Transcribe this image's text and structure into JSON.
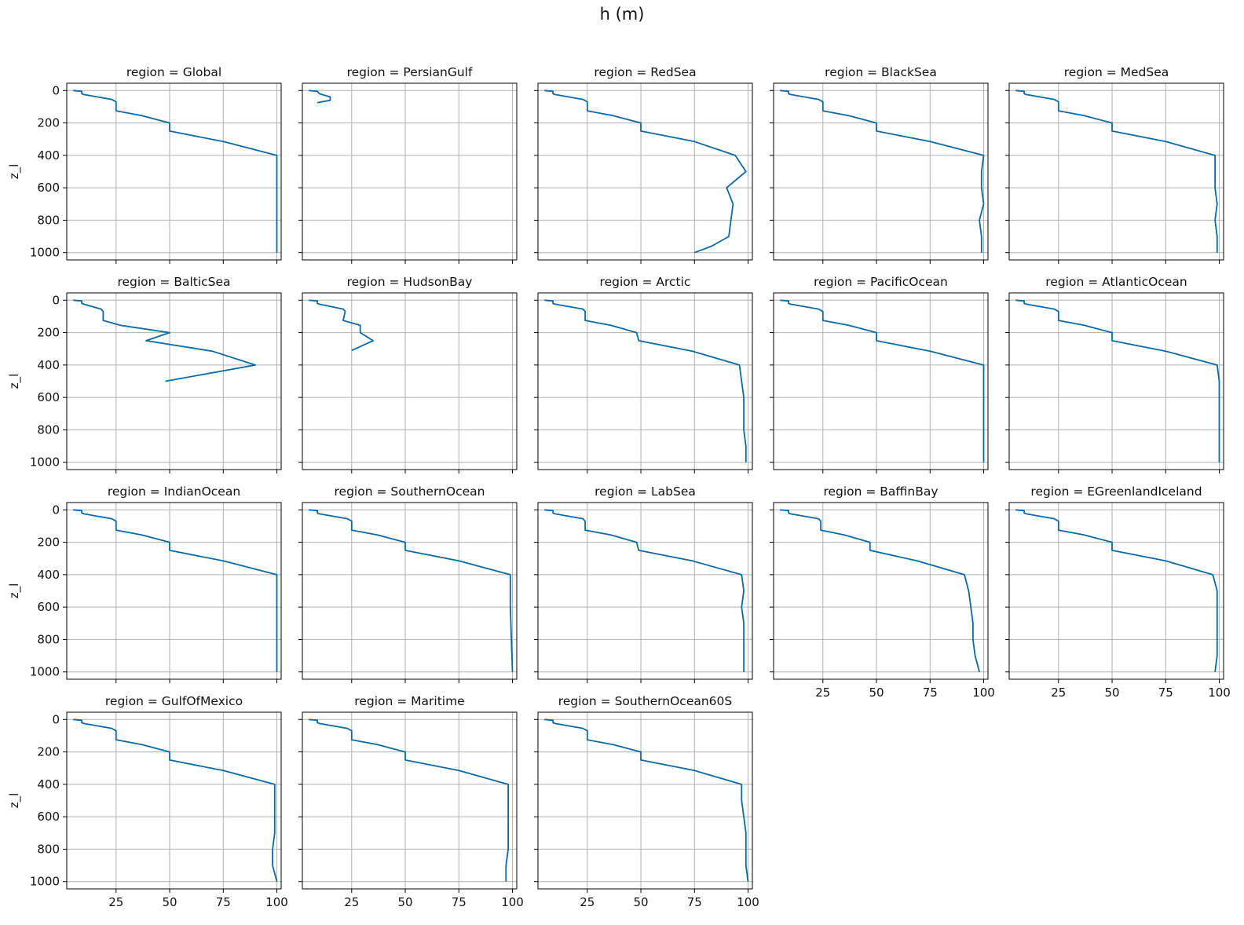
{
  "title": "h (m)",
  "chart_data": {
    "type": "line",
    "title": "h (m)",
    "facet_label_prefix": "region = ",
    "xlabel": "",
    "ylabel": "z_l",
    "xlim": [
      2,
      102
    ],
    "ylim": [
      1045,
      -45
    ],
    "y_inverted": true,
    "xticks": [
      25,
      50,
      75,
      100
    ],
    "yticks": [
      0,
      200,
      400,
      600,
      800,
      1000
    ],
    "grid": true,
    "line_color": "#0a6aa1",
    "panels": [
      {
        "region": "Global",
        "x": [
          5,
          9,
          9,
          10,
          23,
          25,
          25,
          37,
          50,
          50,
          75,
          100,
          100
        ],
        "y": [
          0,
          5,
          20,
          25,
          55,
          70,
          125,
          155,
          200,
          250,
          315,
          400,
          1000
        ]
      },
      {
        "region": "PersianGulf",
        "x": [
          5,
          9,
          10,
          15,
          15,
          9
        ],
        "y": [
          0,
          5,
          20,
          40,
          60,
          75
        ]
      },
      {
        "region": "RedSea",
        "x": [
          5,
          9,
          9,
          10,
          23,
          25,
          25,
          37,
          50,
          50,
          75,
          94,
          99,
          90,
          93,
          92,
          91,
          83,
          75
        ],
        "y": [
          0,
          5,
          20,
          25,
          55,
          70,
          125,
          155,
          200,
          250,
          315,
          400,
          500,
          600,
          700,
          800,
          900,
          960,
          1000
        ]
      },
      {
        "region": "BlackSea",
        "x": [
          5,
          9,
          9,
          10,
          23,
          25,
          25,
          37,
          50,
          50,
          75,
          100,
          99,
          99,
          100,
          98,
          99,
          99
        ],
        "y": [
          0,
          5,
          20,
          25,
          55,
          70,
          125,
          155,
          200,
          250,
          315,
          400,
          500,
          600,
          700,
          800,
          900,
          1000
        ]
      },
      {
        "region": "MedSea",
        "x": [
          5,
          9,
          9,
          10,
          23,
          25,
          25,
          37,
          50,
          50,
          75,
          98,
          98,
          98,
          99,
          98,
          99,
          99
        ],
        "y": [
          0,
          5,
          20,
          25,
          55,
          70,
          125,
          155,
          200,
          250,
          315,
          400,
          500,
          600,
          700,
          800,
          900,
          1000
        ]
      },
      {
        "region": "BalticSea",
        "x": [
          5,
          9,
          9,
          10,
          18,
          19,
          19,
          27,
          50,
          39,
          70,
          90,
          48
        ],
        "y": [
          0,
          5,
          20,
          25,
          55,
          70,
          125,
          155,
          200,
          250,
          315,
          400,
          500
        ]
      },
      {
        "region": "HudsonBay",
        "x": [
          5,
          9,
          9,
          10,
          21,
          22,
          21,
          29,
          29,
          35,
          25
        ],
        "y": [
          0,
          5,
          20,
          25,
          55,
          70,
          125,
          155,
          200,
          250,
          310
        ]
      },
      {
        "region": "Arctic",
        "x": [
          5,
          9,
          9,
          10,
          23,
          24,
          24,
          36,
          48,
          49,
          74,
          96,
          97,
          98,
          98,
          98,
          99,
          99
        ],
        "y": [
          0,
          5,
          20,
          25,
          55,
          70,
          125,
          155,
          200,
          250,
          315,
          400,
          500,
          600,
          700,
          800,
          900,
          1000
        ]
      },
      {
        "region": "PacificOcean",
        "x": [
          5,
          9,
          9,
          10,
          23,
          25,
          25,
          37,
          50,
          50,
          75,
          100,
          100
        ],
        "y": [
          0,
          5,
          20,
          25,
          55,
          70,
          125,
          155,
          200,
          250,
          315,
          400,
          1000
        ]
      },
      {
        "region": "AtlanticOcean",
        "x": [
          5,
          9,
          9,
          10,
          23,
          25,
          25,
          37,
          50,
          50,
          75,
          99,
          100,
          100
        ],
        "y": [
          0,
          5,
          20,
          25,
          55,
          70,
          125,
          155,
          200,
          250,
          315,
          400,
          500,
          1000
        ]
      },
      {
        "region": "IndianOcean",
        "x": [
          5,
          9,
          9,
          10,
          23,
          25,
          25,
          37,
          50,
          50,
          75,
          100,
          100,
          100
        ],
        "y": [
          0,
          5,
          20,
          25,
          55,
          70,
          125,
          155,
          200,
          250,
          315,
          400,
          900,
          1000
        ]
      },
      {
        "region": "SouthernOcean",
        "x": [
          5,
          9,
          9,
          10,
          23,
          25,
          25,
          37,
          50,
          50,
          75,
          99,
          99,
          100
        ],
        "y": [
          0,
          5,
          20,
          25,
          55,
          70,
          125,
          155,
          200,
          250,
          315,
          400,
          600,
          1000
        ]
      },
      {
        "region": "LabSea",
        "x": [
          5,
          9,
          9,
          10,
          23,
          24,
          24,
          36,
          48,
          49,
          74,
          97,
          98,
          97,
          98,
          98,
          98,
          98
        ],
        "y": [
          0,
          5,
          20,
          25,
          55,
          70,
          125,
          155,
          200,
          250,
          315,
          400,
          500,
          600,
          700,
          800,
          900,
          1000
        ]
      },
      {
        "region": "BaffinBay",
        "x": [
          5,
          9,
          9,
          10,
          23,
          24,
          24,
          35,
          47,
          47,
          69,
          91,
          93,
          94,
          95,
          95,
          96,
          98
        ],
        "y": [
          0,
          5,
          20,
          25,
          55,
          70,
          125,
          155,
          200,
          250,
          315,
          400,
          500,
          600,
          700,
          800,
          900,
          1000
        ]
      },
      {
        "region": "EGreenlandIceland",
        "x": [
          5,
          9,
          9,
          10,
          23,
          25,
          25,
          37,
          50,
          50,
          75,
          97,
          99,
          99,
          99,
          99,
          99,
          98
        ],
        "y": [
          0,
          5,
          20,
          25,
          55,
          70,
          125,
          155,
          200,
          250,
          315,
          400,
          500,
          600,
          700,
          800,
          900,
          1000
        ]
      },
      {
        "region": "GulfOfMexico",
        "x": [
          5,
          9,
          9,
          10,
          23,
          25,
          25,
          37,
          50,
          50,
          75,
          99,
          99,
          99,
          99,
          98,
          98,
          100
        ],
        "y": [
          0,
          5,
          20,
          25,
          55,
          70,
          125,
          155,
          200,
          250,
          315,
          400,
          500,
          600,
          700,
          800,
          900,
          1000
        ]
      },
      {
        "region": "Maritime",
        "x": [
          5,
          9,
          9,
          10,
          23,
          25,
          25,
          37,
          50,
          50,
          75,
          98,
          98,
          98,
          98,
          98,
          97,
          97
        ],
        "y": [
          0,
          5,
          20,
          25,
          55,
          70,
          125,
          155,
          200,
          250,
          315,
          400,
          500,
          600,
          700,
          800,
          900,
          1000
        ]
      },
      {
        "region": "SouthernOcean60S",
        "x": [
          5,
          9,
          9,
          10,
          23,
          25,
          25,
          37,
          50,
          50,
          75,
          97,
          97,
          98,
          99,
          99,
          99,
          100
        ],
        "y": [
          0,
          5,
          20,
          25,
          55,
          70,
          125,
          155,
          200,
          250,
          315,
          400,
          500,
          600,
          700,
          800,
          900,
          1000
        ]
      }
    ]
  }
}
